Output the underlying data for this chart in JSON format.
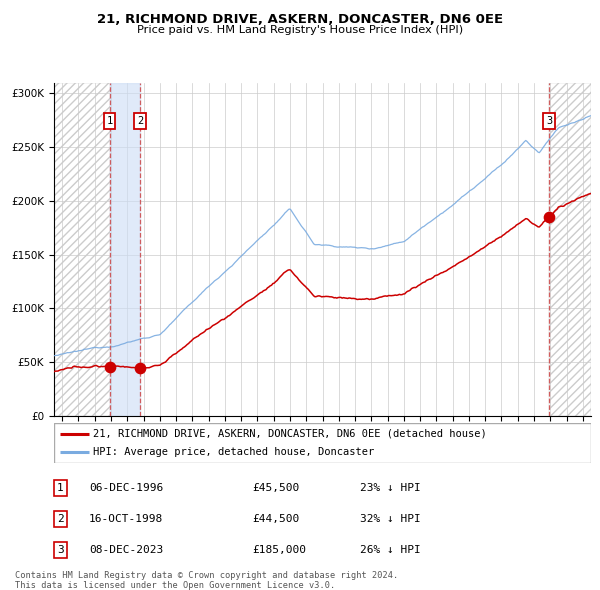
{
  "title": "21, RICHMOND DRIVE, ASKERN, DONCASTER, DN6 0EE",
  "subtitle": "Price paid vs. HM Land Registry's House Price Index (HPI)",
  "legend_line1": "21, RICHMOND DRIVE, ASKERN, DONCASTER, DN6 0EE (detached house)",
  "legend_line2": "HPI: Average price, detached house, Doncaster",
  "footer_line1": "Contains HM Land Registry data © Crown copyright and database right 2024.",
  "footer_line2": "This data is licensed under the Open Government Licence v3.0.",
  "hpi_color": "#7aabe0",
  "price_color": "#cc0000",
  "sale_points": [
    {
      "date_num": 1996.92,
      "price": 45500,
      "label": "1"
    },
    {
      "date_num": 1998.79,
      "price": 44500,
      "label": "2"
    },
    {
      "date_num": 2023.93,
      "price": 185000,
      "label": "3"
    }
  ],
  "table_rows": [
    {
      "num": "1",
      "date": "06-DEC-1996",
      "price": "£45,500",
      "hpi": "23% ↓ HPI"
    },
    {
      "num": "2",
      "date": "16-OCT-1998",
      "price": "£44,500",
      "hpi": "32% ↓ HPI"
    },
    {
      "num": "3",
      "date": "08-DEC-2023",
      "price": "£185,000",
      "hpi": "26% ↓ HPI"
    }
  ],
  "ylim": [
    0,
    310000
  ],
  "xlim_start": 1993.5,
  "xlim_end": 2026.5,
  "sale1_x": 1996.92,
  "sale2_x": 1998.79,
  "sale3_x": 2023.93
}
